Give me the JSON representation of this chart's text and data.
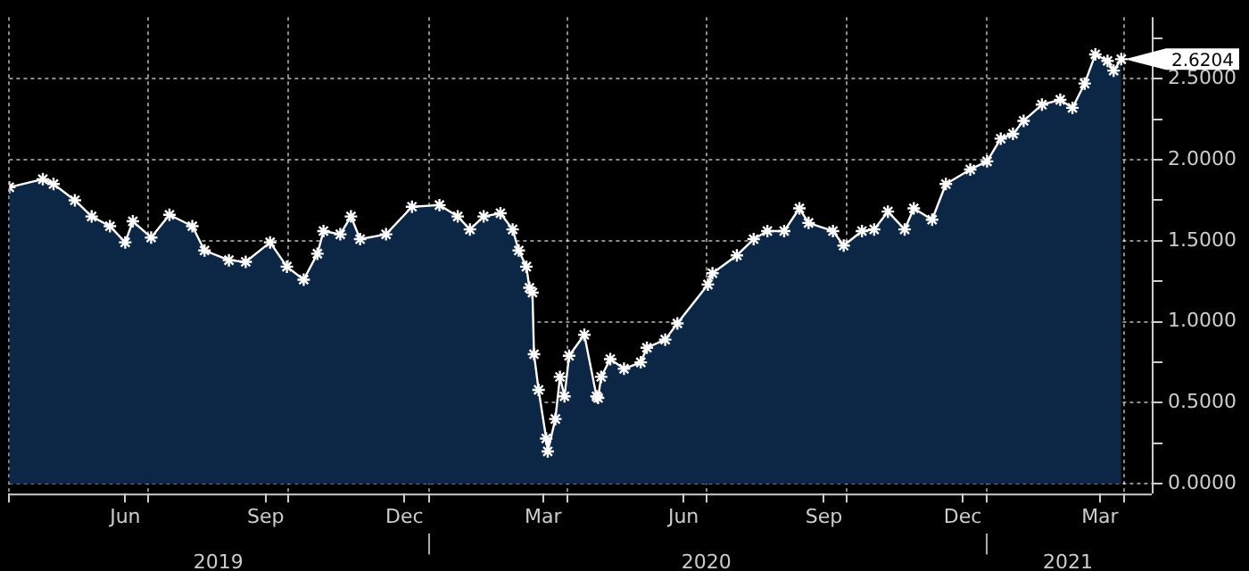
{
  "chart_data": {
    "type": "area",
    "x": [
      "2019-04-01",
      "2019-04-23",
      "2019-04-30",
      "2019-05-14",
      "2019-05-25",
      "2019-06-06",
      "2019-06-16",
      "2019-06-21",
      "2019-07-03",
      "2019-07-15",
      "2019-07-30",
      "2019-08-07",
      "2019-08-23",
      "2019-09-03",
      "2019-09-19",
      "2019-09-30",
      "2019-10-11",
      "2019-10-20",
      "2019-10-24",
      "2019-11-04",
      "2019-11-11",
      "2019-11-17",
      "2019-12-04",
      "2019-12-21",
      "2020-01-08",
      "2020-01-20",
      "2020-01-28",
      "2020-02-06",
      "2020-02-17",
      "2020-02-25",
      "2020-02-29",
      "2020-03-05",
      "2020-03-07",
      "2020-03-09",
      "2020-03-10",
      "2020-03-13",
      "2020-03-18",
      "2020-03-19",
      "2020-03-24",
      "2020-03-27",
      "2020-03-30",
      "2020-04-02",
      "2020-04-12",
      "2020-04-20",
      "2020-04-21",
      "2020-04-23",
      "2020-04-29",
      "2020-05-08",
      "2020-05-19",
      "2020-05-23",
      "2020-06-04",
      "2020-06-12",
      "2020-07-02",
      "2020-07-05",
      "2020-07-21",
      "2020-08-01",
      "2020-08-10",
      "2020-08-21",
      "2020-08-31",
      "2020-09-06",
      "2020-09-22",
      "2020-09-29",
      "2020-10-11",
      "2020-10-19",
      "2020-10-28",
      "2020-11-08",
      "2020-11-14",
      "2020-11-26",
      "2020-12-05",
      "2020-12-21",
      "2021-01-01",
      "2021-01-10",
      "2021-01-18",
      "2021-01-25",
      "2021-02-06",
      "2021-02-18",
      "2021-02-26",
      "2021-03-06",
      "2021-03-13",
      "2021-03-21",
      "2021-03-25",
      "2021-03-30"
    ],
    "series": [
      {
        "color": "#0b2745",
        "values": [
          1.83,
          1.88,
          1.85,
          1.75,
          1.65,
          1.59,
          1.49,
          1.62,
          1.52,
          1.66,
          1.59,
          1.44,
          1.38,
          1.37,
          1.49,
          1.34,
          1.26,
          1.42,
          1.56,
          1.54,
          1.65,
          1.51,
          1.54,
          1.71,
          1.72,
          1.65,
          1.57,
          1.65,
          1.67,
          1.57,
          1.44,
          1.34,
          1.21,
          1.18,
          0.8,
          0.58,
          0.28,
          0.2,
          0.4,
          0.66,
          0.54,
          0.79,
          0.92,
          0.54,
          0.53,
          0.66,
          0.77,
          0.71,
          0.75,
          0.84,
          0.89,
          0.99,
          1.23,
          1.3,
          1.41,
          1.51,
          1.56,
          1.56,
          1.7,
          1.61,
          1.56,
          1.47,
          1.56,
          1.57,
          1.68,
          1.57,
          1.7,
          1.63,
          1.85,
          1.94,
          1.99,
          2.13,
          2.16,
          2.24,
          2.34,
          2.37,
          2.32,
          2.47,
          2.65,
          2.61,
          2.55,
          2.6204
        ]
      }
    ],
    "xlim": [
      "2019-04-01",
      "2021-04-19"
    ],
    "xticks": [
      {
        "value": "2019-04-01",
        "label": null
      },
      {
        "value": "2019-06-16",
        "label": "Jun"
      },
      {
        "value": "2019-07-01",
        "label": null
      },
      {
        "value": "2019-09-16",
        "label": "Sep"
      },
      {
        "value": "2019-10-01",
        "label": null
      },
      {
        "value": "2019-12-16",
        "label": "Dec"
      },
      {
        "value": "2020-01-01",
        "label": null
      },
      {
        "value": "2020-03-16",
        "label": "Mar"
      },
      {
        "value": "2020-04-01",
        "label": null
      },
      {
        "value": "2020-06-16",
        "label": "Jun"
      },
      {
        "value": "2020-07-01",
        "label": null
      },
      {
        "value": "2020-09-16",
        "label": "Sep"
      },
      {
        "value": "2020-10-01",
        "label": null
      },
      {
        "value": "2020-12-16",
        "label": "Dec"
      },
      {
        "value": "2021-01-01",
        "label": null
      },
      {
        "value": "2021-03-16",
        "label": "Mar"
      },
      {
        "value": "2021-04-01",
        "label": null
      }
    ],
    "x2lim": [
      "2019-04-01",
      "2021-04-19"
    ],
    "x2ticks": [
      {
        "value": "2019-08-16",
        "label": "2019"
      },
      {
        "value": "2020-01-01",
        "label": null
      },
      {
        "value": "2020-07-01",
        "label": "2020"
      },
      {
        "value": "2021-01-01",
        "label": null
      },
      {
        "value": "2021-02-23",
        "label": "2021"
      }
    ],
    "ylim": [
      -0.06,
      2.88
    ],
    "yticks": [
      {
        "value": 0,
        "label": "0.0000"
      },
      {
        "value": 0.25,
        "label": null
      },
      {
        "value": 0.5,
        "label": "0.5000"
      },
      {
        "value": 0.75,
        "label": null
      },
      {
        "value": 1,
        "label": "1.0000"
      },
      {
        "value": 1.25,
        "label": null
      },
      {
        "value": 1.5,
        "label": "1.5000"
      },
      {
        "value": 1.75,
        "label": null
      },
      {
        "value": 2,
        "label": "2.0000"
      },
      {
        "value": 2.25,
        "label": null
      },
      {
        "value": 2.5,
        "label": "2.5000"
      },
      {
        "value": 2.75,
        "label": null
      }
    ],
    "annotations": [
      {
        "text": "2.6204",
        "x": "2021-03-30",
        "y": 2.6204
      }
    ],
    "grid": true,
    "marker": "cross",
    "legend": false
  }
}
